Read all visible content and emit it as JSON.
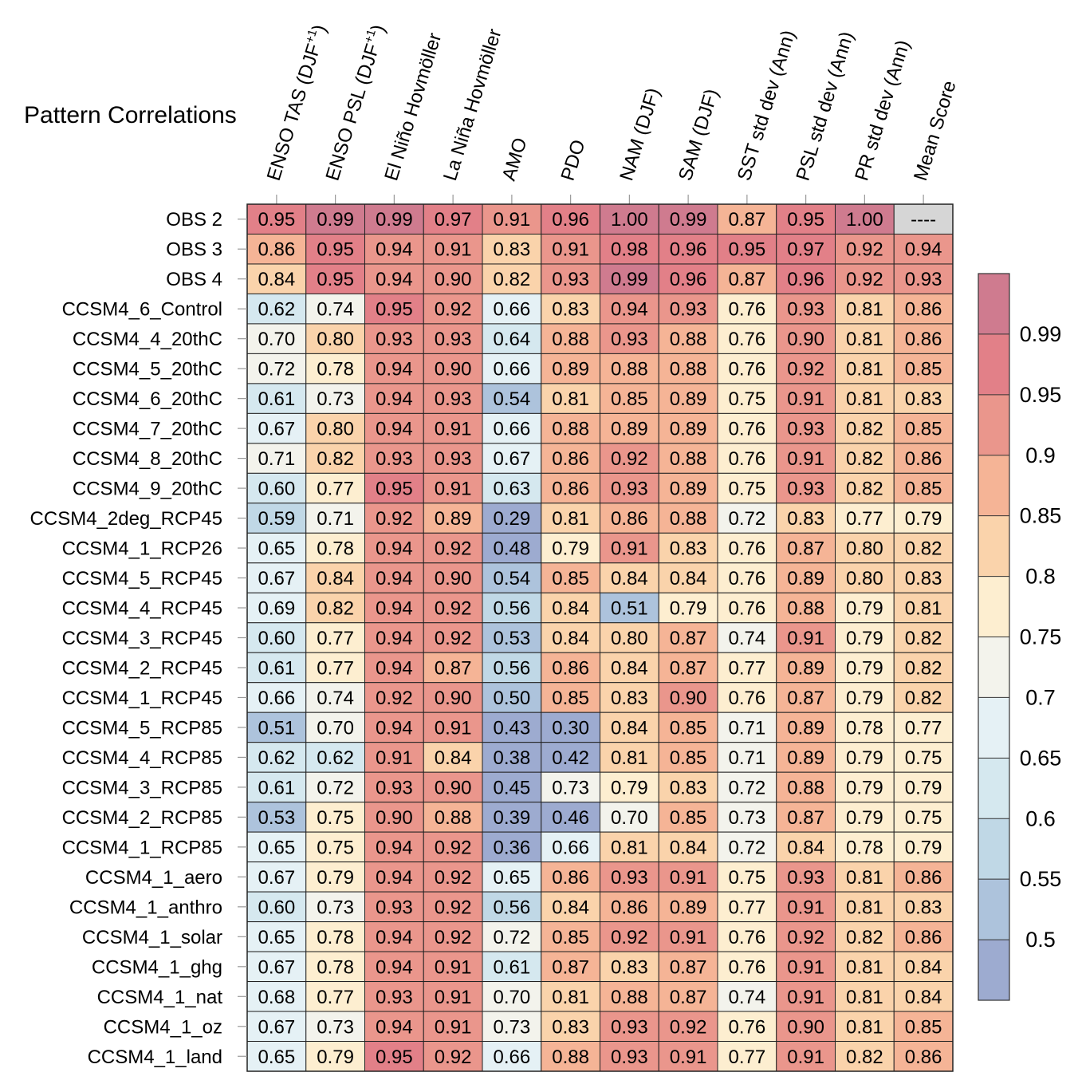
{
  "chart_data": {
    "type": "heatmap",
    "title": "Pattern Correlations",
    "columns": [
      {
        "base": "ENSO TAS (DJF",
        "sup": "+1",
        "tail": ")"
      },
      {
        "base": "ENSO PSL (DJF",
        "sup": "+1",
        "tail": ")"
      },
      {
        "base": "El Niño Hovmöller",
        "sup": "",
        "tail": ""
      },
      {
        "base": "La Niña Hovmöller",
        "sup": "",
        "tail": ""
      },
      {
        "base": "AMO",
        "sup": "",
        "tail": ""
      },
      {
        "base": "PDO",
        "sup": "",
        "tail": ""
      },
      {
        "base": "NAM (DJF)",
        "sup": "",
        "tail": ""
      },
      {
        "base": "SAM (DJF)",
        "sup": "",
        "tail": ""
      },
      {
        "base": "SST std dev (Ann)",
        "sup": "",
        "tail": ""
      },
      {
        "base": "PSL std dev (Ann)",
        "sup": "",
        "tail": ""
      },
      {
        "base": "PR std dev (Ann)",
        "sup": "",
        "tail": ""
      },
      {
        "base": "Mean Score",
        "sup": "",
        "tail": ""
      }
    ],
    "rows": [
      "OBS 2",
      "OBS 3",
      "OBS 4",
      "CCSM4_6_Control",
      "CCSM4_4_20thC",
      "CCSM4_5_20thC",
      "CCSM4_6_20thC",
      "CCSM4_7_20thC",
      "CCSM4_8_20thC",
      "CCSM4_9_20thC",
      "CCSM4_2deg_RCP45",
      "CCSM4_1_RCP26",
      "CCSM4_5_RCP45",
      "CCSM4_4_RCP45",
      "CCSM4_3_RCP45",
      "CCSM4_2_RCP45",
      "CCSM4_1_RCP45",
      "CCSM4_5_RCP85",
      "CCSM4_4_RCP85",
      "CCSM4_3_RCP85",
      "CCSM4_2_RCP85",
      "CCSM4_1_RCP85",
      "CCSM4_1_aero",
      "CCSM4_1_anthro",
      "CCSM4_1_solar",
      "CCSM4_1_ghg",
      "CCSM4_1_nat",
      "CCSM4_1_oz",
      "CCSM4_1_land"
    ],
    "values": [
      [
        "0.95",
        "0.99",
        "0.99",
        "0.97",
        "0.91",
        "0.96",
        "1.00",
        "0.99",
        "0.87",
        "0.95",
        "1.00",
        "----"
      ],
      [
        "0.86",
        "0.95",
        "0.94",
        "0.91",
        "0.83",
        "0.91",
        "0.98",
        "0.96",
        "0.95",
        "0.97",
        "0.92",
        "0.94"
      ],
      [
        "0.84",
        "0.95",
        "0.94",
        "0.90",
        "0.82",
        "0.93",
        "0.99",
        "0.96",
        "0.87",
        "0.96",
        "0.92",
        "0.93"
      ],
      [
        "0.62",
        "0.74",
        "0.95",
        "0.92",
        "0.66",
        "0.83",
        "0.94",
        "0.93",
        "0.76",
        "0.93",
        "0.81",
        "0.86"
      ],
      [
        "0.70",
        "0.80",
        "0.93",
        "0.93",
        "0.64",
        "0.88",
        "0.93",
        "0.88",
        "0.76",
        "0.90",
        "0.81",
        "0.86"
      ],
      [
        "0.72",
        "0.78",
        "0.94",
        "0.90",
        "0.66",
        "0.89",
        "0.88",
        "0.88",
        "0.76",
        "0.92",
        "0.81",
        "0.85"
      ],
      [
        "0.61",
        "0.73",
        "0.94",
        "0.93",
        "0.54",
        "0.81",
        "0.85",
        "0.89",
        "0.75",
        "0.91",
        "0.81",
        "0.83"
      ],
      [
        "0.67",
        "0.80",
        "0.94",
        "0.91",
        "0.66",
        "0.88",
        "0.89",
        "0.89",
        "0.76",
        "0.93",
        "0.82",
        "0.85"
      ],
      [
        "0.71",
        "0.82",
        "0.93",
        "0.93",
        "0.67",
        "0.86",
        "0.92",
        "0.88",
        "0.76",
        "0.91",
        "0.82",
        "0.86"
      ],
      [
        "0.60",
        "0.77",
        "0.95",
        "0.91",
        "0.63",
        "0.86",
        "0.93",
        "0.89",
        "0.75",
        "0.93",
        "0.82",
        "0.85"
      ],
      [
        "0.59",
        "0.71",
        "0.92",
        "0.89",
        "0.29",
        "0.81",
        "0.86",
        "0.88",
        "0.72",
        "0.83",
        "0.77",
        "0.79"
      ],
      [
        "0.65",
        "0.78",
        "0.94",
        "0.92",
        "0.48",
        "0.79",
        "0.91",
        "0.83",
        "0.76",
        "0.87",
        "0.80",
        "0.82"
      ],
      [
        "0.67",
        "0.84",
        "0.94",
        "0.90",
        "0.54",
        "0.85",
        "0.84",
        "0.84",
        "0.76",
        "0.89",
        "0.80",
        "0.83"
      ],
      [
        "0.69",
        "0.82",
        "0.94",
        "0.92",
        "0.56",
        "0.84",
        "0.51",
        "0.79",
        "0.76",
        "0.88",
        "0.79",
        "0.81"
      ],
      [
        "0.60",
        "0.77",
        "0.94",
        "0.92",
        "0.53",
        "0.84",
        "0.80",
        "0.87",
        "0.74",
        "0.91",
        "0.79",
        "0.82"
      ],
      [
        "0.61",
        "0.77",
        "0.94",
        "0.87",
        "0.56",
        "0.86",
        "0.84",
        "0.87",
        "0.77",
        "0.89",
        "0.79",
        "0.82"
      ],
      [
        "0.66",
        "0.74",
        "0.92",
        "0.90",
        "0.50",
        "0.85",
        "0.83",
        "0.90",
        "0.76",
        "0.87",
        "0.79",
        "0.82"
      ],
      [
        "0.51",
        "0.70",
        "0.94",
        "0.91",
        "0.43",
        "0.30",
        "0.84",
        "0.85",
        "0.71",
        "0.89",
        "0.78",
        "0.77"
      ],
      [
        "0.62",
        "0.62",
        "0.91",
        "0.84",
        "0.38",
        "0.42",
        "0.81",
        "0.85",
        "0.71",
        "0.89",
        "0.79",
        "0.75"
      ],
      [
        "0.61",
        "0.72",
        "0.93",
        "0.90",
        "0.45",
        "0.73",
        "0.79",
        "0.83",
        "0.72",
        "0.88",
        "0.79",
        "0.79"
      ],
      [
        "0.53",
        "0.75",
        "0.90",
        "0.88",
        "0.39",
        "0.46",
        "0.70",
        "0.85",
        "0.73",
        "0.87",
        "0.79",
        "0.75"
      ],
      [
        "0.65",
        "0.75",
        "0.94",
        "0.92",
        "0.36",
        "0.66",
        "0.81",
        "0.84",
        "0.72",
        "0.84",
        "0.78",
        "0.79"
      ],
      [
        "0.67",
        "0.79",
        "0.94",
        "0.92",
        "0.65",
        "0.86",
        "0.93",
        "0.91",
        "0.75",
        "0.93",
        "0.81",
        "0.86"
      ],
      [
        "0.60",
        "0.73",
        "0.93",
        "0.92",
        "0.56",
        "0.84",
        "0.86",
        "0.89",
        "0.77",
        "0.91",
        "0.81",
        "0.83"
      ],
      [
        "0.65",
        "0.78",
        "0.94",
        "0.92",
        "0.72",
        "0.85",
        "0.92",
        "0.91",
        "0.76",
        "0.92",
        "0.82",
        "0.86"
      ],
      [
        "0.67",
        "0.78",
        "0.94",
        "0.91",
        "0.61",
        "0.87",
        "0.83",
        "0.87",
        "0.76",
        "0.91",
        "0.81",
        "0.84"
      ],
      [
        "0.68",
        "0.77",
        "0.93",
        "0.91",
        "0.70",
        "0.81",
        "0.88",
        "0.87",
        "0.74",
        "0.91",
        "0.81",
        "0.84"
      ],
      [
        "0.67",
        "0.73",
        "0.94",
        "0.91",
        "0.73",
        "0.83",
        "0.93",
        "0.92",
        "0.76",
        "0.90",
        "0.81",
        "0.85"
      ],
      [
        "0.65",
        "0.79",
        "0.95",
        "0.92",
        "0.66",
        "0.88",
        "0.93",
        "0.91",
        "0.77",
        "0.91",
        "0.82",
        "0.86"
      ]
    ],
    "colorbar": {
      "levels": [
        0.5,
        0.55,
        0.6,
        0.65,
        0.7,
        0.75,
        0.8,
        0.85,
        0.9,
        0.95,
        0.99
      ],
      "tick_labels": [
        "0.5",
        "0.55",
        "0.6",
        "0.65",
        "0.7",
        "0.75",
        "0.8",
        "0.85",
        "0.9",
        "0.95",
        "0.99"
      ],
      "colors": [
        "#9dabd0",
        "#adc3dc",
        "#c0d8e6",
        "#d5e8ef",
        "#e5f1f5",
        "#f3f3ec",
        "#fdeed0",
        "#fad3ab",
        "#f5b496",
        "#ea968c",
        "#e28088",
        "#cf7b8f"
      ],
      "missing_color": "#d6d6d6"
    }
  }
}
